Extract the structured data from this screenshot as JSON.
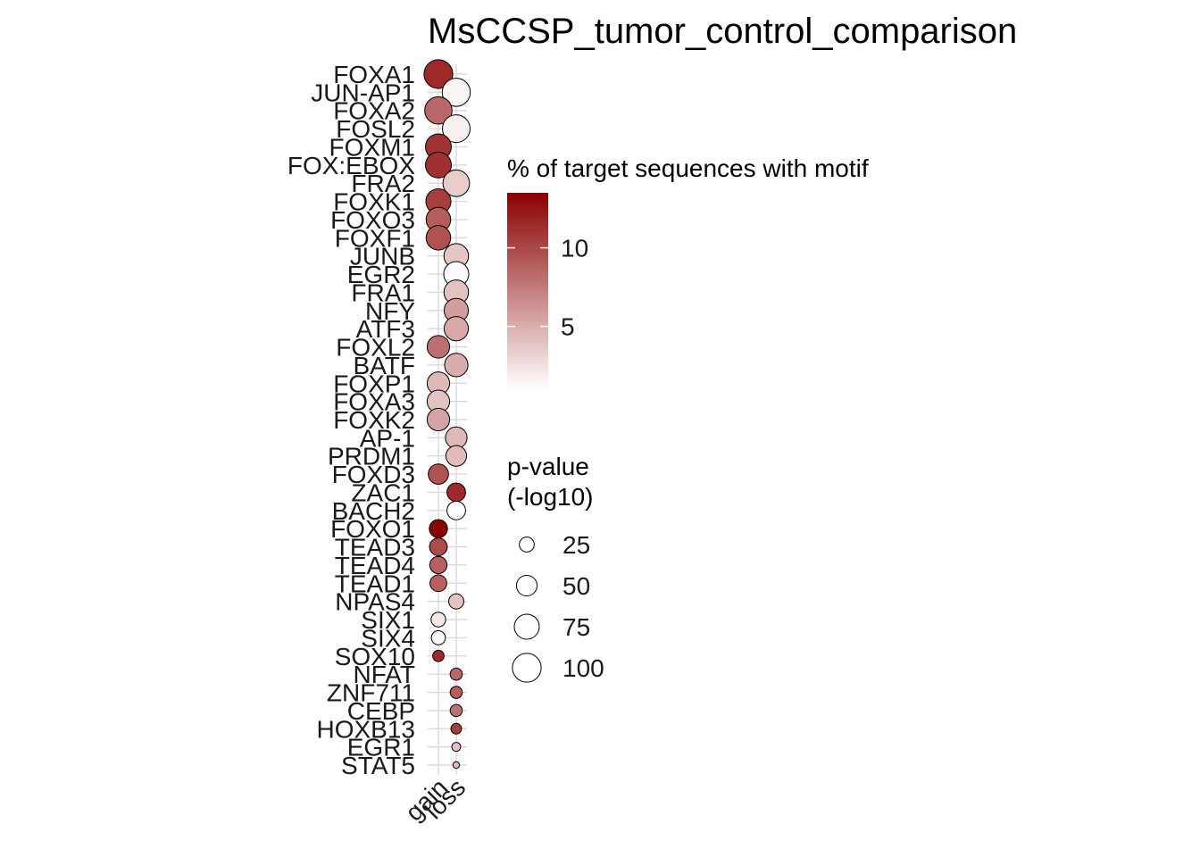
{
  "chart_data": {
    "type": "bubble",
    "title": "MsCCSP_tumor_control_comparison",
    "categories": [
      "FOXA1",
      "JUN-AP1",
      "FOXA2",
      "FOSL2",
      "FOXM1",
      "FOX:EBOX",
      "FRA2",
      "FOXK1",
      "FOXO3",
      "FOXF1",
      "JUNB",
      "EGR2",
      "FRA1",
      "NFY",
      "ATF3",
      "FOXL2",
      "BATF",
      "FOXP1",
      "FOXA3",
      "FOXK2",
      "AP-1",
      "PRDM1",
      "FOXD3",
      "ZAC1",
      "BACH2",
      "FOXO1",
      "TEAD3",
      "TEAD4",
      "TEAD1",
      "NPAS4",
      "SIX1",
      "SIX4",
      "SOX10",
      "NFAT",
      "ZNF711",
      "CEBP",
      "HOXB13",
      "EGR1",
      "STAT5"
    ],
    "x": [
      "gain",
      "loss"
    ],
    "points": [
      {
        "motif": "FOXA1",
        "group": "gain",
        "pct": 11.5,
        "p": 100
      },
      {
        "motif": "JUN-AP1",
        "group": "loss",
        "pct": 1.5,
        "p": 95
      },
      {
        "motif": "FOXA2",
        "group": "gain",
        "pct": 8.5,
        "p": 90
      },
      {
        "motif": "FOSL2",
        "group": "loss",
        "pct": 1.8,
        "p": 92
      },
      {
        "motif": "FOXM1",
        "group": "gain",
        "pct": 11.0,
        "p": 80
      },
      {
        "motif": "FOX:EBOX",
        "group": "gain",
        "pct": 11.2,
        "p": 80
      },
      {
        "motif": "FRA2",
        "group": "loss",
        "pct": 3.5,
        "p": 85
      },
      {
        "motif": "FOXK1",
        "group": "gain",
        "pct": 10.5,
        "p": 75
      },
      {
        "motif": "FOXO3",
        "group": "gain",
        "pct": 9.0,
        "p": 72
      },
      {
        "motif": "FOXF1",
        "group": "gain",
        "pct": 9.5,
        "p": 72
      },
      {
        "motif": "JUNB",
        "group": "loss",
        "pct": 3.8,
        "p": 72
      },
      {
        "motif": "EGR2",
        "group": "loss",
        "pct": 1.2,
        "p": 75
      },
      {
        "motif": "FRA1",
        "group": "loss",
        "pct": 4.0,
        "p": 72
      },
      {
        "motif": "NFY",
        "group": "loss",
        "pct": 5.8,
        "p": 70
      },
      {
        "motif": "ATF3",
        "group": "loss",
        "pct": 5.2,
        "p": 70
      },
      {
        "motif": "FOXL2",
        "group": "gain",
        "pct": 8.0,
        "p": 60
      },
      {
        "motif": "BATF",
        "group": "loss",
        "pct": 5.0,
        "p": 65
      },
      {
        "motif": "FOXP1",
        "group": "gain",
        "pct": 4.5,
        "p": 60
      },
      {
        "motif": "FOXA3",
        "group": "gain",
        "pct": 4.0,
        "p": 60
      },
      {
        "motif": "FOXK2",
        "group": "gain",
        "pct": 5.5,
        "p": 60
      },
      {
        "motif": "AP-1",
        "group": "loss",
        "pct": 4.5,
        "p": 55
      },
      {
        "motif": "PRDM1",
        "group": "loss",
        "pct": 4.3,
        "p": 50
      },
      {
        "motif": "FOXD3",
        "group": "gain",
        "pct": 9.5,
        "p": 48
      },
      {
        "motif": "ZAC1",
        "group": "loss",
        "pct": 11.5,
        "p": 40
      },
      {
        "motif": "BACH2",
        "group": "loss",
        "pct": 1.0,
        "p": 40
      },
      {
        "motif": "FOXO1",
        "group": "gain",
        "pct": 13.5,
        "p": 38
      },
      {
        "motif": "TEAD3",
        "group": "gain",
        "pct": 9.8,
        "p": 36
      },
      {
        "motif": "TEAD4",
        "group": "gain",
        "pct": 8.8,
        "p": 34
      },
      {
        "motif": "TEAD1",
        "group": "gain",
        "pct": 8.8,
        "p": 32
      },
      {
        "motif": "NPAS4",
        "group": "loss",
        "pct": 4.0,
        "p": 26
      },
      {
        "motif": "SIX1",
        "group": "gain",
        "pct": 2.2,
        "p": 24
      },
      {
        "motif": "SIX4",
        "group": "gain",
        "pct": 1.5,
        "p": 22
      },
      {
        "motif": "SOX10",
        "group": "gain",
        "pct": 11.5,
        "p": 14
      },
      {
        "motif": "NFAT",
        "group": "loss",
        "pct": 8.5,
        "p": 16
      },
      {
        "motif": "ZNF711",
        "group": "loss",
        "pct": 9.0,
        "p": 16
      },
      {
        "motif": "CEBP",
        "group": "loss",
        "pct": 8.0,
        "p": 16
      },
      {
        "motif": "HOXB13",
        "group": "loss",
        "pct": 10.5,
        "p": 12
      },
      {
        "motif": "EGR1",
        "group": "loss",
        "pct": 4.0,
        "p": 8
      },
      {
        "motif": "STAT5",
        "group": "loss",
        "pct": 4.5,
        "p": 4
      }
    ],
    "color_legend": {
      "title": "% of target sequences with motif",
      "ticks": [
        "10",
        "5"
      ],
      "tick_values": [
        10,
        5
      ],
      "range": [
        1,
        13.5
      ],
      "low_color": "#ffffff",
      "high_color": "#8b0000"
    },
    "size_legend": {
      "title_line1": "p-value",
      "title_line2": "(-log10)",
      "labels": [
        "25",
        "50",
        "75",
        "100"
      ],
      "values": [
        25,
        50,
        75,
        100
      ]
    }
  }
}
